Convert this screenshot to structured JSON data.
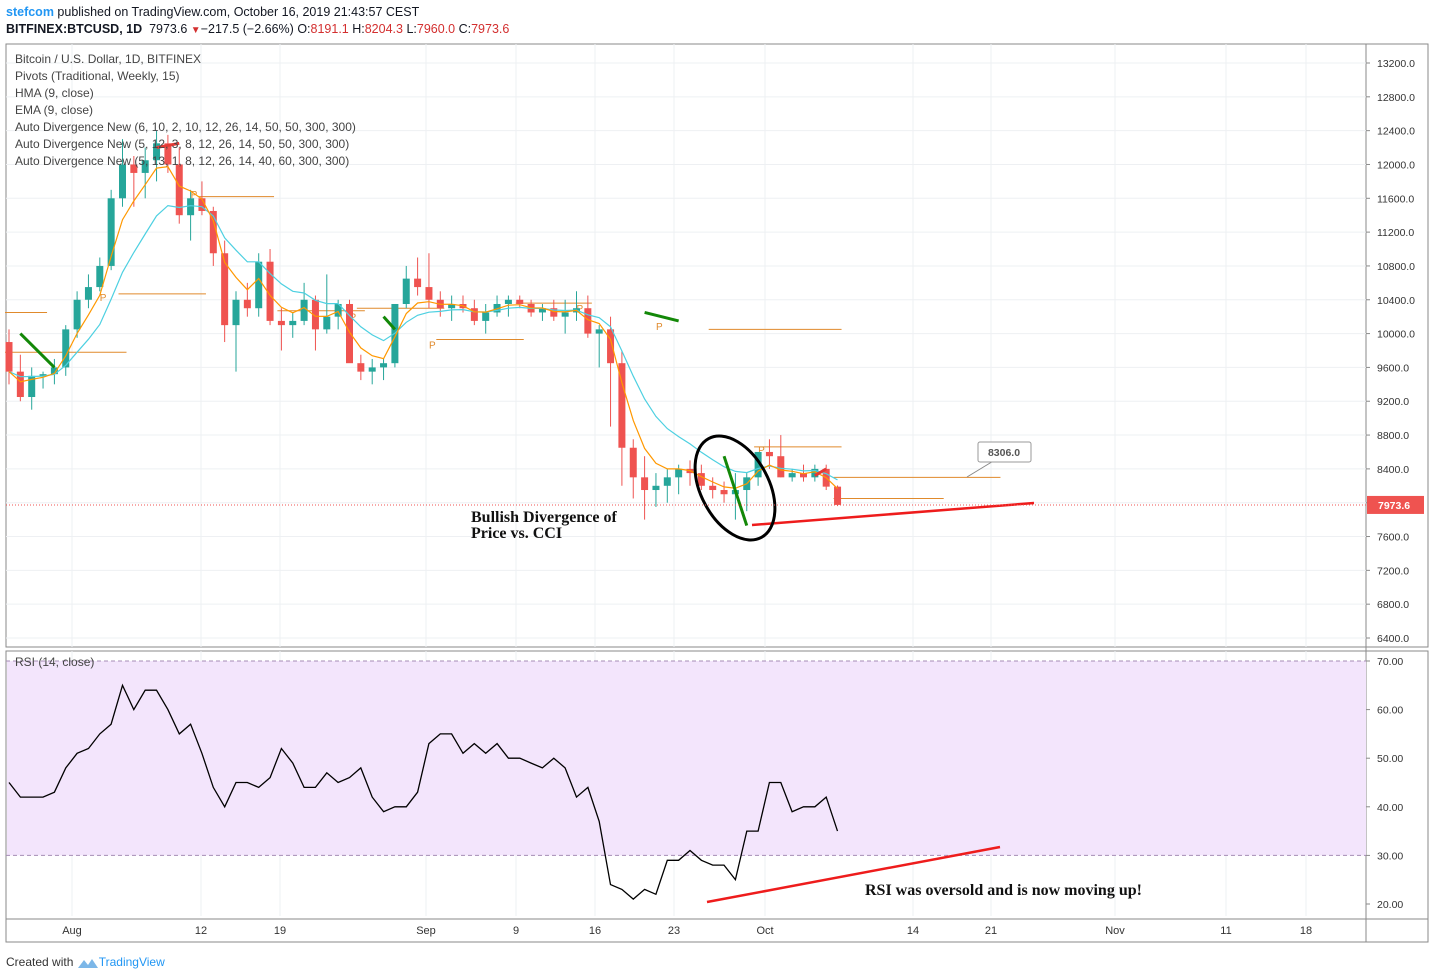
{
  "header": {
    "user": "stefcom",
    "published_text": "published on TradingView.com, October 16, 2019 21:43:57 CEST",
    "symbol": "BITFINEX:BTCUSD, 1D",
    "last": "7973.6",
    "change_arrow": "▼",
    "change": "−217.5 (−2.66%)",
    "o_label": "O:",
    "o_value": "8191.1",
    "h_label": "H:",
    "h_value": "8204.3",
    "l_label": "L:",
    "l_value": "7960.0",
    "c_label": "C:",
    "c_value": "7973.6"
  },
  "indicators": [
    "Bitcoin / U.S. Dollar, 1D, BITFINEX",
    "Pivots (Traditional, Weekly, 15)",
    "HMA (9, close)",
    "EMA (9, close)",
    "Auto Divergence New (6, 10, 2, 10, 12, 26, 14, 50, 50, 300, 300)",
    "Auto Divergence New (5, 12, 3, 8, 12, 26, 14, 50, 50, 300, 300)",
    "Auto Divergence New (5, 13, 1, 8, 12, 26, 14, 40, 60, 300, 300)"
  ],
  "rsi_label": "RSI (14, close)",
  "annotations": {
    "price_note_line1": "Bullish Divergence of",
    "price_note_line2": "Price vs. CCI",
    "rsi_note": "RSI was oversold and is now moving up!",
    "pivot_letter": "P",
    "pivot_box_value": "8306.0",
    "last_price_tag": "7973.6"
  },
  "footer": {
    "created_with": "Created with",
    "brand": "TradingView"
  },
  "colors": {
    "up": "#26a69a",
    "down": "#ef5350",
    "ema": "#ff9800",
    "hma": "#4dd0e1",
    "pivot": "#e08a2c",
    "divergence_green": "#138808",
    "divergence_red": "#e53935",
    "trendline_red": "#ee1c1c",
    "rsi_band": "#f3e5fc",
    "rsi_line": "#000000"
  },
  "chart_data": [
    {
      "type": "candlestick",
      "title": "Bitcoin / U.S. Dollar, 1D, BITFINEX",
      "x_ticks": [
        "Aug",
        "12",
        "19",
        "Sep",
        "9",
        "16",
        "23",
        "Oct",
        "14",
        "21",
        "Nov",
        "11",
        "18"
      ],
      "y_ticks": [
        "13200.0",
        "12800.0",
        "12400.0",
        "12000.0",
        "11600.0",
        "11200.0",
        "10800.0",
        "10400.0",
        "10000.0",
        "9600.0",
        "9200.0",
        "8800.0",
        "8400.0",
        "8000.0",
        "7600.0",
        "7200.0",
        "6800.0",
        "6400.0"
      ],
      "ylim": [
        6300,
        13400
      ],
      "start_date": "2019-07-24",
      "ohlc": [
        [
          9900,
          10050,
          9400,
          9550
        ],
        [
          9550,
          9750,
          9200,
          9250
        ],
        [
          9250,
          9600,
          9100,
          9500
        ],
        [
          9500,
          9550,
          9350,
          9520
        ],
        [
          9520,
          9700,
          9400,
          9600
        ],
        [
          9600,
          10100,
          9500,
          10050
        ],
        [
          10050,
          10500,
          9950,
          10400
        ],
        [
          10400,
          10700,
          10300,
          10550
        ],
        [
          10550,
          10900,
          10500,
          10800
        ],
        [
          10800,
          11700,
          10750,
          11600
        ],
        [
          11600,
          12300,
          11500,
          12000
        ],
        [
          12000,
          12100,
          11500,
          11900
        ],
        [
          11900,
          12200,
          11600,
          12050
        ],
        [
          12050,
          12400,
          11800,
          12250
        ],
        [
          12250,
          12350,
          11900,
          12000
        ],
        [
          12000,
          12200,
          11300,
          11400
        ],
        [
          11400,
          11700,
          11100,
          11600
        ],
        [
          11600,
          11800,
          11400,
          11450
        ],
        [
          11450,
          11500,
          10800,
          10950
        ],
        [
          10950,
          11100,
          9900,
          10100
        ],
        [
          10100,
          10500,
          9550,
          10400
        ],
        [
          10400,
          10600,
          10200,
          10300
        ],
        [
          10300,
          10950,
          10200,
          10850
        ],
        [
          10850,
          11000,
          10100,
          10150
        ],
        [
          10150,
          10300,
          9800,
          10100
        ],
        [
          10100,
          10250,
          9950,
          10150
        ],
        [
          10150,
          10600,
          10100,
          10400
        ],
        [
          10400,
          10450,
          9800,
          10050
        ],
        [
          10050,
          10700,
          10000,
          10200
        ],
        [
          10200,
          10400,
          10050,
          10350
        ],
        [
          10350,
          10400,
          9700,
          9650
        ],
        [
          9650,
          9750,
          9450,
          9550
        ],
        [
          9550,
          9700,
          9400,
          9600
        ],
        [
          9600,
          9700,
          9450,
          9650
        ],
        [
          9650,
          10350,
          9600,
          10350
        ],
        [
          10350,
          10800,
          10300,
          10650
        ],
        [
          10650,
          10900,
          10450,
          10550
        ],
        [
          10550,
          10950,
          10300,
          10400
        ],
        [
          10400,
          10500,
          10200,
          10300
        ],
        [
          10300,
          10450,
          10150,
          10350
        ],
        [
          10350,
          10450,
          10250,
          10300
        ],
        [
          10300,
          10400,
          10100,
          10150
        ],
        [
          10150,
          10350,
          10000,
          10250
        ],
        [
          10250,
          10450,
          10200,
          10350
        ],
        [
          10350,
          10450,
          10200,
          10400
        ],
        [
          10400,
          10450,
          10300,
          10350
        ],
        [
          10350,
          10400,
          10200,
          10250
        ],
        [
          10250,
          10350,
          10150,
          10300
        ],
        [
          10300,
          10400,
          10150,
          10200
        ],
        [
          10200,
          10400,
          10000,
          10250
        ],
        [
          10250,
          10500,
          10150,
          10300
        ],
        [
          10300,
          10450,
          9950,
          10000
        ],
        [
          10000,
          10100,
          9600,
          10050
        ],
        [
          10050,
          10200,
          8900,
          9650
        ],
        [
          9650,
          9800,
          8200,
          8650
        ],
        [
          8650,
          8750,
          8050,
          8300
        ],
        [
          8300,
          8550,
          7800,
          8150
        ],
        [
          8150,
          8350,
          7950,
          8200
        ],
        [
          8200,
          8400,
          8000,
          8300
        ],
        [
          8300,
          8450,
          8100,
          8400
        ],
        [
          8400,
          8500,
          8200,
          8350
        ],
        [
          8350,
          8450,
          8150,
          8200
        ],
        [
          8200,
          8300,
          8050,
          8150
        ],
        [
          8150,
          8250,
          8000,
          8100
        ],
        [
          8100,
          8350,
          7800,
          8150
        ],
        [
          8150,
          8350,
          7900,
          8300
        ],
        [
          8300,
          8550,
          8200,
          8600
        ],
        [
          8600,
          8750,
          8400,
          8550
        ],
        [
          8550,
          8800,
          8300,
          8300
        ],
        [
          8300,
          8400,
          8250,
          8350
        ],
        [
          8350,
          8450,
          8250,
          8300
        ],
        [
          8300,
          8450,
          8250,
          8400
        ],
        [
          8400,
          8450,
          8150,
          8190
        ],
        [
          8190,
          8204,
          7960,
          7974
        ]
      ],
      "rsi": [
        45,
        42,
        42,
        42,
        43,
        48,
        51,
        52,
        55,
        57,
        65,
        60,
        64,
        64,
        60,
        55,
        57,
        51,
        44,
        40,
        45,
        45,
        44,
        46,
        52,
        49,
        44,
        44,
        47,
        45,
        46,
        48,
        42,
        39,
        40,
        40,
        43,
        53,
        55,
        55,
        51,
        53,
        51,
        53,
        50,
        50,
        49,
        48,
        50,
        48,
        42,
        44,
        37,
        24,
        23,
        21,
        23,
        22,
        29,
        29,
        31,
        29,
        28,
        28,
        25,
        35,
        35,
        45,
        45,
        39,
        40,
        40,
        42,
        35
      ],
      "series": [
        {
          "name": "EMA (9, close)"
        },
        {
          "name": "HMA (9, close)"
        }
      ]
    },
    {
      "type": "line",
      "title": "RSI (14, close)",
      "y_ticks": [
        "70.00",
        "60.00",
        "50.00",
        "40.00",
        "30.00",
        "20.00"
      ],
      "ylim": [
        17,
        73
      ],
      "overbought": 70,
      "oversold": 30
    }
  ]
}
